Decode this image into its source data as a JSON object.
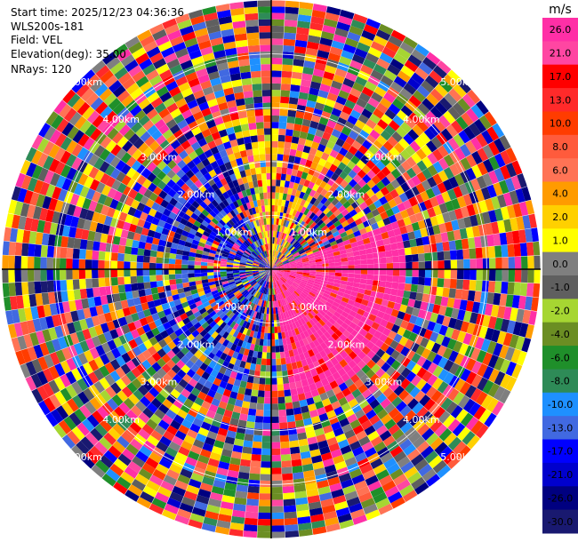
{
  "header": {
    "start_time": "Start time: 2025/12/23 04:36:36",
    "station": "WLS200s-181",
    "field": "Field: VEL",
    "elevation": "Elevation(deg): 35.00",
    "nrays": "NRays: 120"
  },
  "chart_data": {
    "type": "heatmap",
    "projection": "polar",
    "field": "VEL",
    "nrays": 120,
    "elevation_deg": 35.0,
    "range_rings_km": [
      1.0,
      2.0,
      3.0,
      4.0,
      5.0
    ],
    "ring_labels": [
      "1.00km",
      "2.00km",
      "3.00km",
      "4.00km",
      "5.00km"
    ],
    "colorbar": {
      "unit": "m/s",
      "ticks": [
        "26.0",
        "21.0",
        "17.0",
        "13.0",
        "10.0",
        "8.0",
        "6.0",
        "4.0",
        "2.0",
        "1.0",
        "0.0",
        "-1.0",
        "-2.0",
        "-4.0",
        "-6.0",
        "-8.0",
        "-10.0",
        "-13.0",
        "-17.0",
        "-21.0",
        "-26.0",
        "-30.0"
      ],
      "colors": [
        "#ff2fa6",
        "#ff46a2",
        "#ff0000",
        "#ff2a2a",
        "#ff3c00",
        "#ff5b3c",
        "#ff7355",
        "#ff9b00",
        "#ffd000",
        "#ffff00",
        "#7f7f7f",
        "#5f5f5f",
        "#a6d632",
        "#6b8e23",
        "#1f8f2a",
        "#2e8b57",
        "#1e90ff",
        "#4169e1",
        "#0000ff",
        "#0000cd",
        "#000080",
        "#191970"
      ]
    }
  }
}
